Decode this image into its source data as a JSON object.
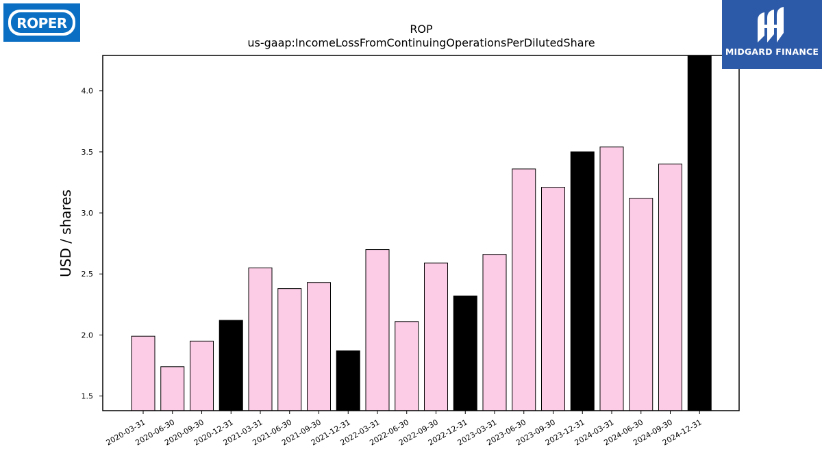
{
  "logos": {
    "company": "ROPER",
    "publisher": "MIDGARD FINANCE"
  },
  "chart_data": {
    "type": "bar",
    "title": "ROP",
    "subtitle": "us-gaap:IncomeLossFromContinuingOperationsPerDilutedShare",
    "xlabel": "",
    "ylabel": "USD / shares",
    "ylim": [
      1.38,
      4.29
    ],
    "yticks": [
      "1.5",
      "2.0",
      "2.5",
      "3.0",
      "3.5",
      "4.0"
    ],
    "categories": [
      "2020-03-31",
      "2020-06-30",
      "2020-09-30",
      "2020-12-31",
      "2021-03-31",
      "2021-06-30",
      "2021-09-30",
      "2021-12-31",
      "2022-03-31",
      "2022-06-30",
      "2022-09-30",
      "2022-12-31",
      "2023-03-31",
      "2023-06-30",
      "2023-09-30",
      "2023-12-31",
      "2024-03-31",
      "2024-06-30",
      "2024-09-30",
      "2024-12-31"
    ],
    "values": [
      1.99,
      1.74,
      1.95,
      2.12,
      2.55,
      2.38,
      2.43,
      1.87,
      2.7,
      2.11,
      2.59,
      2.32,
      2.66,
      3.36,
      3.21,
      3.5,
      3.54,
      3.12,
      3.4,
      4.3
    ],
    "quarter_colors": {
      "fiscal_year_end": "#000000",
      "other": "#fccce6"
    },
    "grid": false
  }
}
